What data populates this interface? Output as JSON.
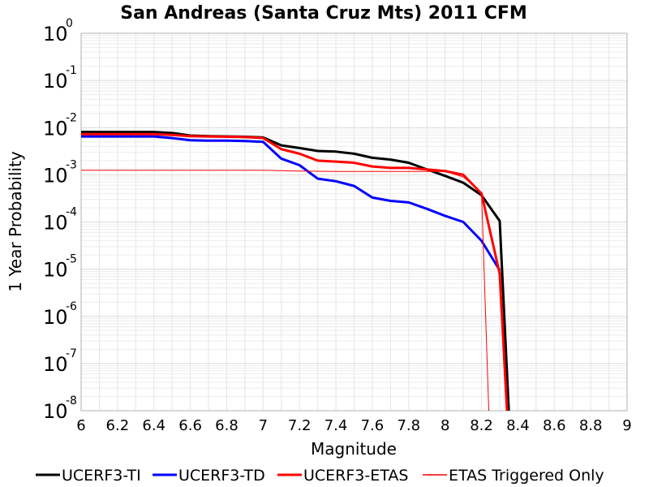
{
  "chart_data": {
    "type": "line",
    "title": "San Andreas (Santa Cruz Mts) 2011 CFM",
    "xlabel": "Magnitude",
    "ylabel": "1 Year Probability",
    "xlim": [
      6,
      9
    ],
    "ylim": [
      1e-08,
      1
    ],
    "yscale": "log",
    "grid": true,
    "legend_position": "bottom",
    "x_ticks": [
      "6",
      "6.2",
      "6.4",
      "6.6",
      "6.8",
      "7",
      "7.2",
      "7.4",
      "7.6",
      "7.8",
      "8",
      "8.2",
      "8.4",
      "8.6",
      "8.8",
      "9"
    ],
    "y_ticks": [
      {
        "base": "10",
        "exp": "0"
      },
      {
        "base": "10",
        "exp": "-1"
      },
      {
        "base": "10",
        "exp": "-2"
      },
      {
        "base": "10",
        "exp": "-3"
      },
      {
        "base": "10",
        "exp": "-4"
      },
      {
        "base": "10",
        "exp": "-5"
      },
      {
        "base": "10",
        "exp": "-6"
      },
      {
        "base": "10",
        "exp": "-7"
      },
      {
        "base": "10",
        "exp": "-8"
      }
    ],
    "series": [
      {
        "name": "UCERF3-TI",
        "color": "#000000",
        "x": [
          6.0,
          6.1,
          6.2,
          6.3,
          6.4,
          6.5,
          6.6,
          6.7,
          6.8,
          6.9,
          7.0,
          7.1,
          7.2,
          7.3,
          7.4,
          7.5,
          7.6,
          7.7,
          7.8,
          7.9,
          8.0,
          8.1,
          8.2,
          8.3,
          8.35
        ],
        "y": [
          0.0081,
          0.0081,
          0.0081,
          0.0081,
          0.0081,
          0.0077,
          0.0068,
          0.0066,
          0.0065,
          0.0064,
          0.0062,
          0.0042,
          0.0037,
          0.0032,
          0.0031,
          0.0028,
          0.0023,
          0.0021,
          0.0018,
          0.0013,
          0.00095,
          0.00068,
          0.00037,
          0.000105,
          1e-08
        ]
      },
      {
        "name": "UCERF3-TD",
        "color": "#0000ff",
        "x": [
          6.0,
          6.1,
          6.2,
          6.3,
          6.4,
          6.5,
          6.6,
          6.7,
          6.8,
          6.9,
          7.0,
          7.1,
          7.2,
          7.3,
          7.4,
          7.5,
          7.6,
          7.7,
          7.8,
          7.9,
          8.0,
          8.1,
          8.2,
          8.3
        ],
        "y": [
          0.0065,
          0.0065,
          0.0065,
          0.0065,
          0.0065,
          0.006,
          0.0054,
          0.0053,
          0.0053,
          0.0052,
          0.005,
          0.0022,
          0.0016,
          0.00083,
          0.00073,
          0.00058,
          0.00033,
          0.00028,
          0.00026,
          0.00019,
          0.000135,
          0.0001,
          4e-05,
          9.5e-06
        ]
      },
      {
        "name": "UCERF3-ETAS",
        "color": "#ff0000",
        "x": [
          6.0,
          6.1,
          6.2,
          6.3,
          6.4,
          6.5,
          6.6,
          6.7,
          6.8,
          6.9,
          7.0,
          7.1,
          7.2,
          7.3,
          7.4,
          7.5,
          7.6,
          7.7,
          7.8,
          7.9,
          8.0,
          8.1,
          8.2,
          8.3,
          8.34
        ],
        "y": [
          0.0073,
          0.0073,
          0.0073,
          0.0073,
          0.0073,
          0.007,
          0.0066,
          0.0065,
          0.0064,
          0.0063,
          0.006,
          0.0035,
          0.0028,
          0.002,
          0.0019,
          0.0018,
          0.0015,
          0.0014,
          0.0014,
          0.0013,
          0.0012,
          0.001,
          0.0004,
          8e-06,
          1e-08
        ]
      },
      {
        "name": "ETAS Triggered Only",
        "color": "#ff0000",
        "thin": true,
        "x": [
          6.0,
          6.2,
          6.4,
          6.6,
          6.8,
          7.0,
          7.2,
          7.4,
          7.6,
          7.8,
          8.0,
          8.1,
          8.2,
          8.24
        ],
        "y": [
          0.00125,
          0.00125,
          0.00125,
          0.00125,
          0.00125,
          0.00125,
          0.0012,
          0.00118,
          0.00118,
          0.00118,
          0.00118,
          0.0009,
          0.00042,
          1e-08
        ]
      }
    ]
  }
}
